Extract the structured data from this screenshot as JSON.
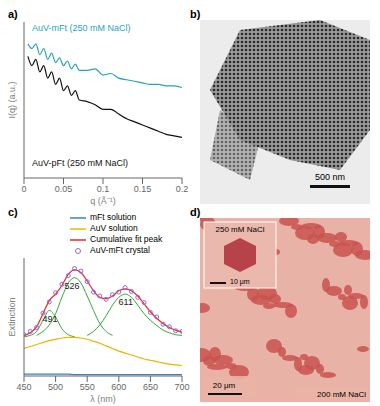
{
  "chart_data": [
    {
      "type": "line",
      "title": "a)",
      "x_label": "q (Å⁻¹)",
      "y_label": "I(q) (a.u.)",
      "tick_labels": "x",
      "x": [
        0.005,
        0.01,
        0.015,
        0.02,
        0.025,
        0.03,
        0.035,
        0.04,
        0.045,
        0.05,
        0.055,
        0.06,
        0.065,
        0.07,
        0.08,
        0.09,
        0.1,
        0.11,
        0.12,
        0.13,
        0.14,
        0.15,
        0.16,
        0.17,
        0.18,
        0.19,
        0.2
      ],
      "xlim": [
        0,
        0.2
      ],
      "xticks": [
        0,
        0.05,
        0.1,
        0.15,
        0.2
      ],
      "ylim": [
        0,
        10
      ],
      "series": [
        {
          "name": "AuV-mFt (250 mM NaCl)",
          "color": "#2a9fc4",
          "values": [
            8.6,
            8.3,
            8.6,
            7.9,
            8.3,
            7.6,
            8.0,
            7.4,
            7.7,
            7.2,
            7.5,
            7.0,
            7.3,
            6.9,
            6.9,
            7.0,
            6.6,
            6.7,
            6.4,
            6.3,
            6.2,
            6.1,
            6.0,
            6.0,
            5.9,
            5.9,
            5.8
          ]
        },
        {
          "name": "AuV-pFt (250 mM NaCl)",
          "color": "#111111",
          "values": [
            7.8,
            7.2,
            7.6,
            6.8,
            7.2,
            6.4,
            6.8,
            6.0,
            6.4,
            5.6,
            5.9,
            5.3,
            5.6,
            5.0,
            4.9,
            4.7,
            4.4,
            4.4,
            4.1,
            3.8,
            3.6,
            3.4,
            3.2,
            3.0,
            2.8,
            2.7,
            2.6
          ]
        }
      ]
    },
    {
      "type": "image",
      "title": "b)",
      "annotations": [
        "500 nm"
      ]
    },
    {
      "type": "line",
      "title": "c)",
      "x_label": "λ (nm)",
      "y_label": "Extinction",
      "tick_labels": "x",
      "x": [
        450,
        460,
        470,
        480,
        490,
        500,
        510,
        520,
        530,
        540,
        550,
        560,
        570,
        580,
        590,
        600,
        610,
        620,
        630,
        640,
        650,
        660,
        670,
        680,
        690,
        700
      ],
      "xlim": [
        450,
        700
      ],
      "xticks": [
        450,
        500,
        550,
        600,
        650,
        700
      ],
      "ylim": [
        0,
        1.8
      ],
      "series": [
        {
          "name": "mFt solution",
          "color": "#3a7fd0",
          "values": [
            0.03,
            0.03,
            0.03,
            0.03,
            0.03,
            0.03,
            0.03,
            0.03,
            0.02,
            0.02,
            0.02,
            0.02,
            0.02,
            0.02,
            0.02,
            0.02,
            0.02,
            0.02,
            0.02,
            0.02,
            0.02,
            0.02,
            0.02,
            0.02,
            0.02,
            0.02
          ]
        },
        {
          "name": "AuV solution",
          "color": "#f0b400",
          "values": [
            0.42,
            0.45,
            0.48,
            0.51,
            0.54,
            0.56,
            0.58,
            0.59,
            0.59,
            0.58,
            0.56,
            0.53,
            0.5,
            0.46,
            0.42,
            0.38,
            0.35,
            0.32,
            0.29,
            0.26,
            0.24,
            0.22,
            0.2,
            0.18,
            0.17,
            0.16
          ]
        },
        {
          "name": "Cumulative fit peak",
          "color": "#e8282b",
          "values": [
            0.62,
            0.66,
            0.75,
            0.95,
            1.15,
            1.25,
            1.38,
            1.55,
            1.62,
            1.58,
            1.45,
            1.3,
            1.2,
            1.18,
            1.22,
            1.3,
            1.33,
            1.3,
            1.22,
            1.1,
            0.98,
            0.88,
            0.8,
            0.74,
            0.7,
            0.67
          ]
        },
        {
          "name": "AuV-mFt crystal",
          "color": "#9966cc",
          "marker": "circle",
          "line_style": "none",
          "values": [
            0.63,
            0.68,
            0.74,
            0.96,
            1.13,
            1.27,
            1.4,
            1.53,
            1.64,
            1.6,
            1.44,
            1.28,
            1.22,
            1.17,
            1.24,
            1.28,
            1.35,
            1.29,
            1.2,
            1.12,
            0.97,
            0.9,
            0.79,
            0.75,
            0.69,
            0.68
          ]
        }
      ],
      "fit_components": [
        {
          "peak": 491,
          "color": "#33aa33",
          "values": [
            0.6,
            0.62,
            0.68,
            0.85,
            1.0,
            0.9,
            0.72,
            0.63,
            0.6,
            null,
            null,
            null,
            null,
            null,
            null,
            null,
            null,
            null,
            null,
            null,
            null,
            null,
            null,
            null,
            null,
            null
          ]
        },
        {
          "peak": 526,
          "color": "#33aa33",
          "values": [
            null,
            null,
            0.62,
            0.68,
            0.78,
            0.95,
            1.2,
            1.42,
            1.5,
            1.42,
            1.22,
            1.0,
            0.8,
            0.68,
            0.62,
            null,
            null,
            null,
            null,
            null,
            null,
            null,
            null,
            null,
            null,
            null
          ]
        },
        {
          "peak": 611,
          "color": "#33aa33",
          "values": [
            null,
            null,
            null,
            null,
            null,
            null,
            null,
            null,
            null,
            null,
            0.62,
            0.68,
            0.78,
            0.92,
            1.08,
            1.2,
            1.25,
            1.2,
            1.08,
            0.95,
            0.85,
            0.77,
            0.7,
            0.66,
            0.63,
            0.62
          ]
        }
      ]
    },
    {
      "type": "image",
      "title": "d)",
      "annotations": [
        "20 μm",
        "200 mM NaCl"
      ],
      "inset_annotations": [
        "250 mM NaCl",
        "10 μm"
      ]
    }
  ]
}
